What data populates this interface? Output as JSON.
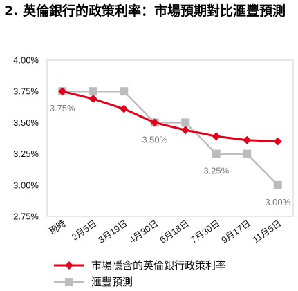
{
  "title": "2. 英倫銀行的政策利率：市場預期對比滙豐預測",
  "chart_data": {
    "type": "line",
    "categories": [
      "現時",
      "2月5日",
      "3月19日",
      "4月30日",
      "6月18日",
      "7月30日",
      "9月17日",
      "11月5日"
    ],
    "ylim": [
      2.75,
      4.0
    ],
    "yticks": [
      "4.00%",
      "3.75%",
      "3.50%",
      "3.25%",
      "3.00%",
      "2.75%"
    ],
    "ytick_values": [
      4.0,
      3.75,
      3.5,
      3.25,
      3.0,
      2.75
    ],
    "grid": false,
    "legend_position": "bottom",
    "series": [
      {
        "name": "市場隱含的英倫銀行政策利率",
        "color": "#e0001b",
        "marker": "diamond",
        "values": [
          3.75,
          3.69,
          3.61,
          3.5,
          3.44,
          3.39,
          3.36,
          3.35
        ]
      },
      {
        "name": "滙豐預測",
        "color": "#bcbcbc",
        "marker": "square",
        "values": [
          3.75,
          3.75,
          3.75,
          3.5,
          3.5,
          3.25,
          3.25,
          3.0
        ]
      }
    ],
    "annotations": [
      {
        "index": 0,
        "text": "3.75%"
      },
      {
        "index": 3,
        "text": "3.50%"
      },
      {
        "index": 5,
        "text": "3.25%"
      },
      {
        "index": 7,
        "text": "3.00%"
      }
    ]
  }
}
